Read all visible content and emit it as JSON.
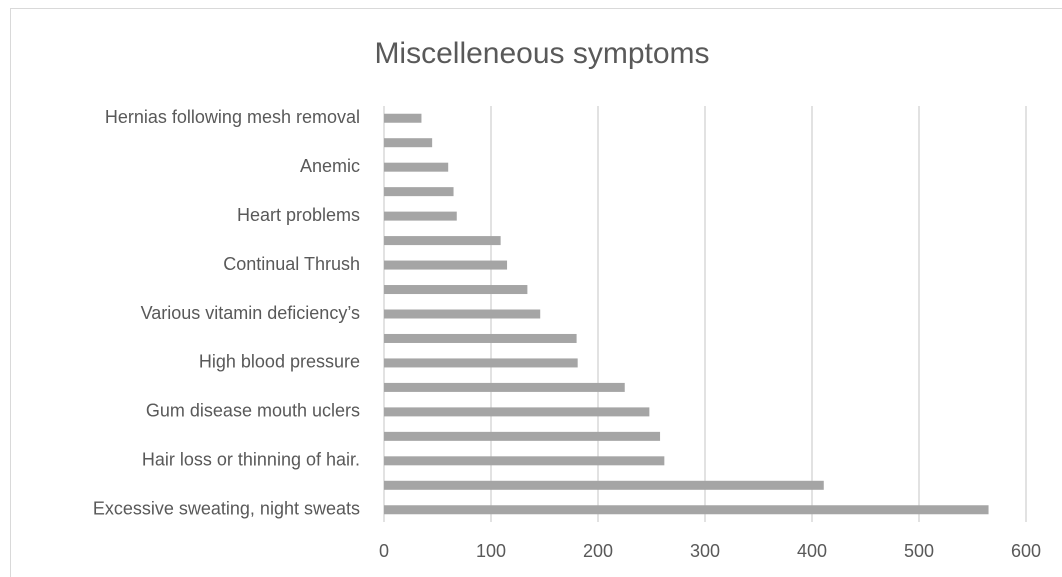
{
  "chart_data": {
    "type": "bar",
    "orientation": "horizontal",
    "title": "Miscelleneous symptoms",
    "categories": [
      "Hernias following mesh removal",
      null,
      "Anemic",
      null,
      "Heart problems",
      null,
      "Continual Thrush",
      null,
      "Various vitamin deficiency’s",
      null,
      "High blood pressure",
      null,
      "Gum disease mouth uclers",
      null,
      "Hair loss or thinning of hair.",
      null,
      "Excessive sweating, night sweats"
    ],
    "values": [
      35,
      45,
      60,
      65,
      68,
      109,
      115,
      134,
      146,
      180,
      181,
      225,
      248,
      258,
      262,
      411,
      565
    ],
    "color": "#a5a5a5",
    "xlim": [
      0,
      600
    ],
    "xticks": [
      0,
      100,
      200,
      300,
      400,
      500,
      600
    ],
    "grid": true
  }
}
